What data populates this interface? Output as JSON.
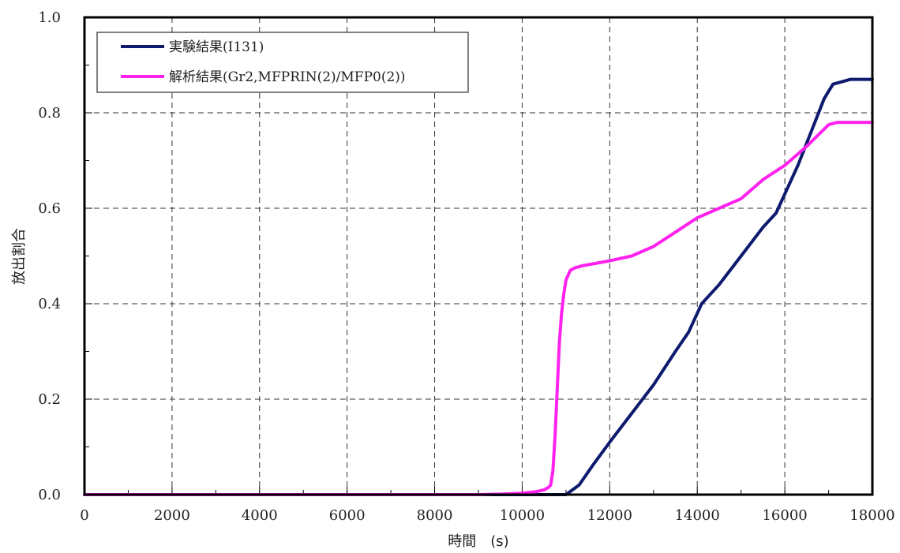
{
  "chart_data": {
    "type": "line",
    "xlabel": "時間　(s)",
    "ylabel": "放出割合",
    "xlim": [
      0,
      18000
    ],
    "ylim": [
      0,
      1.0
    ],
    "x_ticks": [
      "0",
      "2000",
      "4000",
      "6000",
      "8000",
      "10000",
      "12000",
      "14000",
      "16000",
      "18000"
    ],
    "y_ticks": [
      "0.0",
      "0.2",
      "0.4",
      "0.6",
      "0.8",
      "1.0"
    ],
    "grid": true,
    "legend_position": "top-left",
    "series": [
      {
        "name": "実験結果(I131)",
        "color": "#0d1a6e",
        "x": [
          0,
          10900,
          11000,
          11300,
          11600,
          12000,
          12500,
          13000,
          13500,
          13800,
          14100,
          14500,
          15000,
          15500,
          15800,
          16000,
          16300,
          16600,
          16900,
          17100,
          17300,
          17500,
          18000
        ],
        "y": [
          0,
          0,
          0,
          0.02,
          0.06,
          0.11,
          0.17,
          0.23,
          0.3,
          0.34,
          0.4,
          0.44,
          0.5,
          0.56,
          0.59,
          0.63,
          0.69,
          0.76,
          0.83,
          0.86,
          0.865,
          0.87,
          0.87
        ]
      },
      {
        "name": "解析結果(Gr2,MFPRIN(2)/MFP0(2))",
        "color": "#ff22ee",
        "x": [
          0,
          9000,
          9500,
          10000,
          10300,
          10500,
          10600,
          10650,
          10700,
          10750,
          10800,
          10850,
          10900,
          10950,
          11000,
          11100,
          11200,
          11400,
          11700,
          12000,
          12500,
          13000,
          13500,
          14000,
          14500,
          15000,
          15500,
          16000,
          16500,
          17000,
          17200,
          18000
        ],
        "y": [
          0,
          0,
          0.001,
          0.003,
          0.006,
          0.01,
          0.015,
          0.02,
          0.05,
          0.12,
          0.22,
          0.32,
          0.38,
          0.42,
          0.45,
          0.47,
          0.475,
          0.48,
          0.485,
          0.49,
          0.5,
          0.52,
          0.55,
          0.58,
          0.6,
          0.62,
          0.66,
          0.69,
          0.73,
          0.775,
          0.78,
          0.78
        ]
      }
    ]
  }
}
